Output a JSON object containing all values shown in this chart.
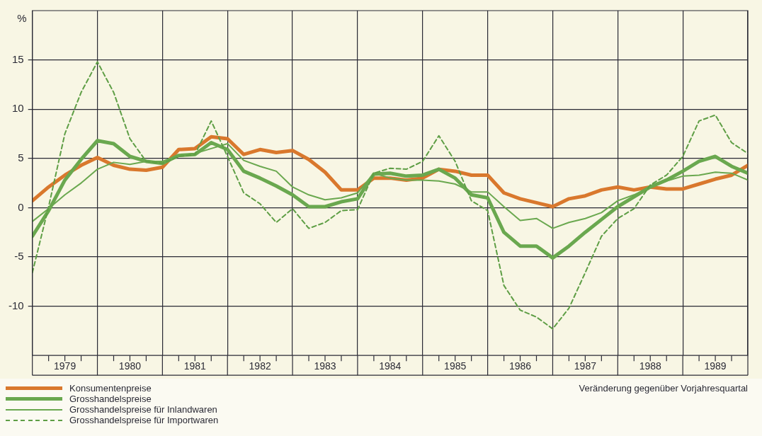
{
  "chart_data": {
    "type": "line",
    "ylabel": "%",
    "legend": "bottom left",
    "grid": true,
    "marker": "none",
    "annotations": [
      "Veränderung gegenüber Vorjahresquartal"
    ],
    "xlim": [
      1979,
      1990
    ],
    "ylim": [
      -15,
      20
    ],
    "yticks": [
      -10,
      -5,
      0,
      5,
      10,
      15
    ],
    "xticks": [
      {
        "value": 1979,
        "label": null
      },
      {
        "value": 1979.25,
        "label": null
      },
      {
        "value": 1979.5,
        "label": "1979"
      },
      {
        "value": 1979.75,
        "label": null
      },
      {
        "value": 1980,
        "label": null
      },
      {
        "value": 1980.25,
        "label": null
      },
      {
        "value": 1980.5,
        "label": "1980"
      },
      {
        "value": 1980.75,
        "label": null
      },
      {
        "value": 1981,
        "label": null
      },
      {
        "value": 1981.25,
        "label": null
      },
      {
        "value": 1981.5,
        "label": "1981"
      },
      {
        "value": 1981.75,
        "label": null
      },
      {
        "value": 1982,
        "label": null
      },
      {
        "value": 1982.25,
        "label": null
      },
      {
        "value": 1982.5,
        "label": "1982"
      },
      {
        "value": 1982.75,
        "label": null
      },
      {
        "value": 1983,
        "label": null
      },
      {
        "value": 1983.25,
        "label": null
      },
      {
        "value": 1983.5,
        "label": "1983"
      },
      {
        "value": 1983.75,
        "label": null
      },
      {
        "value": 1984,
        "label": null
      },
      {
        "value": 1984.25,
        "label": null
      },
      {
        "value": 1984.5,
        "label": "1984"
      },
      {
        "value": 1984.75,
        "label": null
      },
      {
        "value": 1985,
        "label": null
      },
      {
        "value": 1985.25,
        "label": null
      },
      {
        "value": 1985.5,
        "label": "1985"
      },
      {
        "value": 1985.75,
        "label": null
      },
      {
        "value": 1986,
        "label": null
      },
      {
        "value": 1986.25,
        "label": null
      },
      {
        "value": 1986.5,
        "label": "1986"
      },
      {
        "value": 1986.75,
        "label": null
      },
      {
        "value": 1987,
        "label": null
      },
      {
        "value": 1987.25,
        "label": null
      },
      {
        "value": 1987.5,
        "label": "1987"
      },
      {
        "value": 1987.75,
        "label": null
      },
      {
        "value": 1988,
        "label": null
      },
      {
        "value": 1988.25,
        "label": null
      },
      {
        "value": 1988.5,
        "label": "1988"
      },
      {
        "value": 1988.75,
        "label": null
      },
      {
        "value": 1989,
        "label": null
      },
      {
        "value": 1989.25,
        "label": null
      },
      {
        "value": 1989.5,
        "label": "1989"
      },
      {
        "value": 1989.75,
        "label": null
      },
      {
        "value": 1990,
        "label": null
      }
    ],
    "x": [
      1979,
      1979.25,
      1979.5,
      1979.75,
      1980,
      1980.25,
      1980.5,
      1980.75,
      1981,
      1981.25,
      1981.5,
      1981.75,
      1982,
      1982.25,
      1982.5,
      1982.75,
      1983,
      1983.25,
      1983.5,
      1983.75,
      1984,
      1984.25,
      1984.5,
      1984.75,
      1985,
      1985.25,
      1985.5,
      1985.75,
      1986,
      1986.25,
      1986.5,
      1986.75,
      1987,
      1987.25,
      1987.5,
      1987.75,
      1988,
      1988.25,
      1988.5,
      1988.75,
      1989,
      1989.25,
      1989.5,
      1989.75,
      1990
    ],
    "series": [
      {
        "name": "Konsumentenpreise",
        "color": "#d9782d",
        "line_style": "solid",
        "values": [
          0.7,
          2.1,
          3.3,
          4.3,
          5.1,
          4.3,
          3.9,
          3.8,
          4.1,
          5.9,
          6.0,
          7.2,
          7.0,
          5.4,
          5.9,
          5.6,
          5.8,
          4.9,
          3.6,
          1.8,
          1.8,
          3.0,
          3.0,
          2.8,
          3.0,
          3.9,
          3.7,
          3.3,
          3.3,
          1.5,
          0.9,
          0.5,
          0.1,
          0.9,
          1.2,
          1.8,
          2.1,
          1.8,
          2.1,
          1.9,
          1.9,
          2.4,
          2.9,
          3.3,
          4.3
        ]
      },
      {
        "name": "Grosshandelspreise",
        "color": "#6aa84f",
        "line_style": "solid",
        "values": [
          -2.9,
          -0.3,
          2.8,
          4.9,
          6.8,
          6.5,
          5.2,
          4.7,
          4.5,
          5.3,
          5.4,
          6.6,
          5.9,
          3.7,
          3.0,
          2.2,
          1.3,
          0.1,
          0.1,
          0.6,
          0.9,
          3.4,
          3.5,
          3.2,
          3.3,
          3.9,
          3.0,
          1.3,
          1.0,
          -2.5,
          -3.9,
          -3.9,
          -5.1,
          -3.9,
          -2.5,
          -1.2,
          0.1,
          1.1,
          2.1,
          2.8,
          3.7,
          4.7,
          5.2,
          4.2,
          3.5
        ]
      },
      {
        "name": "Grosshandelspreise für Inlandwaren",
        "color": "#6aa84f",
        "line_style": "solid",
        "values": [
          -1.4,
          -0.1,
          1.3,
          2.5,
          3.9,
          4.6,
          4.4,
          4.7,
          4.7,
          5.3,
          5.5,
          6.0,
          6.5,
          4.8,
          4.2,
          3.7,
          2.1,
          1.3,
          0.8,
          1.0,
          1.5,
          3.5,
          3.0,
          2.8,
          2.8,
          2.7,
          2.4,
          1.6,
          1.6,
          0.1,
          -1.3,
          -1.1,
          -2.1,
          -1.5,
          -1.1,
          -0.5,
          0.7,
          1.3,
          2.1,
          2.7,
          3.2,
          3.3,
          3.6,
          3.5,
          2.8
        ]
      },
      {
        "name": "Grosshandelspreise für Importwaren",
        "color": "#5e9e45",
        "line_style": "dashed",
        "values": [
          -6.6,
          0.1,
          7.5,
          11.7,
          14.8,
          11.7,
          7.0,
          4.7,
          4.5,
          5.2,
          5.4,
          8.8,
          5.2,
          1.5,
          0.4,
          -1.5,
          -0.1,
          -2.1,
          -1.5,
          -0.3,
          -0.2,
          3.5,
          4.0,
          3.9,
          4.7,
          7.3,
          4.7,
          0.7,
          -0.3,
          -7.9,
          -10.4,
          -11.1,
          -12.3,
          -10.2,
          -6.6,
          -2.9,
          -1.1,
          -0.1,
          2.3,
          3.3,
          5.2,
          8.8,
          9.4,
          6.6,
          5.5
        ]
      }
    ]
  }
}
